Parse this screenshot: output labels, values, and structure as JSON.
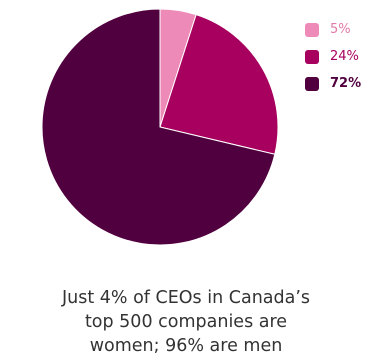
{
  "chart_data": {
    "type": "pie",
    "values": [
      5,
      24,
      72
    ],
    "labels": [
      "5%",
      "24%",
      "72%"
    ],
    "colors": [
      "#ee8ab8",
      "#a8005f",
      "#51003f"
    ],
    "label_colors": [
      "#e07aa8",
      "#a8005f",
      "#51003f"
    ],
    "label_weights": [
      "normal",
      "normal",
      "bold"
    ],
    "start_angle_deg": 0,
    "direction": "clockwise",
    "legend_position": "right"
  },
  "caption": {
    "line1": "Just 4% of CEOs in Canada’s",
    "line2": "top 500 companies are",
    "line3": "women; 96% are men"
  }
}
